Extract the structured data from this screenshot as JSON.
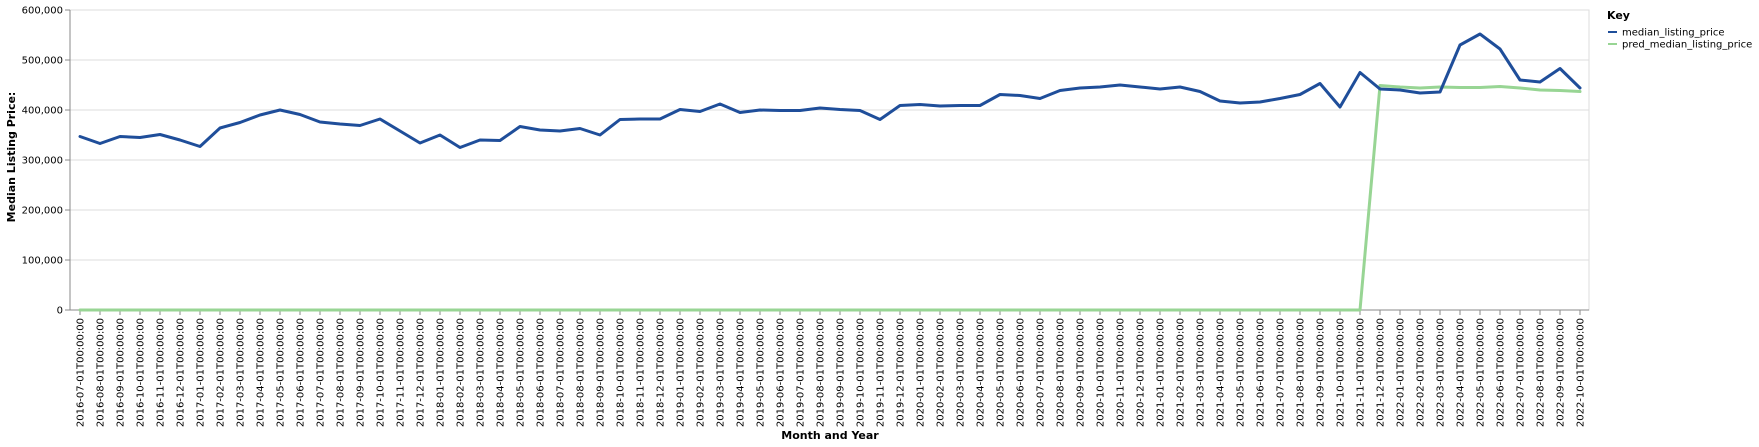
{
  "chart_data": {
    "type": "line",
    "xlabel": "Month and Year",
    "ylabel": "Median Listing Price:",
    "ylim": [
      0,
      600000
    ],
    "y_ticks": [
      0,
      100000,
      200000,
      300000,
      400000,
      500000,
      600000
    ],
    "y_tick_labels": [
      "0",
      "100,000",
      "200,000",
      "300,000",
      "400,000",
      "500,000",
      "600,000"
    ],
    "grid": true,
    "legend": {
      "title": "Key",
      "placement": "top-right"
    },
    "x": [
      "2016-07-01T00:00:00",
      "2016-08-01T00:00:00",
      "2016-09-01T00:00:00",
      "2016-10-01T00:00:00",
      "2016-11-01T00:00:00",
      "2016-12-01T00:00:00",
      "2017-01-01T00:00:00",
      "2017-02-01T00:00:00",
      "2017-03-01T00:00:00",
      "2017-04-01T00:00:00",
      "2017-05-01T00:00:00",
      "2017-06-01T00:00:00",
      "2017-07-01T00:00:00",
      "2017-08-01T00:00:00",
      "2017-09-01T00:00:00",
      "2017-10-01T00:00:00",
      "2017-11-01T00:00:00",
      "2017-12-01T00:00:00",
      "2018-01-01T00:00:00",
      "2018-02-01T00:00:00",
      "2018-03-01T00:00:00",
      "2018-04-01T00:00:00",
      "2018-05-01T00:00:00",
      "2018-06-01T00:00:00",
      "2018-07-01T00:00:00",
      "2018-08-01T00:00:00",
      "2018-09-01T00:00:00",
      "2018-10-01T00:00:00",
      "2018-11-01T00:00:00",
      "2018-12-01T00:00:00",
      "2019-01-01T00:00:00",
      "2019-02-01T00:00:00",
      "2019-03-01T00:00:00",
      "2019-04-01T00:00:00",
      "2019-05-01T00:00:00",
      "2019-06-01T00:00:00",
      "2019-07-01T00:00:00",
      "2019-08-01T00:00:00",
      "2019-09-01T00:00:00",
      "2019-10-01T00:00:00",
      "2019-11-01T00:00:00",
      "2019-12-01T00:00:00",
      "2020-01-01T00:00:00",
      "2020-02-01T00:00:00",
      "2020-03-01T00:00:00",
      "2020-04-01T00:00:00",
      "2020-05-01T00:00:00",
      "2020-06-01T00:00:00",
      "2020-07-01T00:00:00",
      "2020-08-01T00:00:00",
      "2020-09-01T00:00:00",
      "2020-10-01T00:00:00",
      "2020-11-01T00:00:00",
      "2020-12-01T00:00:00",
      "2021-01-01T00:00:00",
      "2021-02-01T00:00:00",
      "2021-03-01T00:00:00",
      "2021-04-01T00:00:00",
      "2021-05-01T00:00:00",
      "2021-06-01T00:00:00",
      "2021-07-01T00:00:00",
      "2021-08-01T00:00:00",
      "2021-09-01T00:00:00",
      "2021-10-01T00:00:00",
      "2021-11-01T00:00:00",
      "2021-12-01T00:00:00",
      "2022-01-01T00:00:00",
      "2022-02-01T00:00:00",
      "2022-03-01T00:00:00",
      "2022-04-01T00:00:00",
      "2022-05-01T00:00:00",
      "2022-06-01T00:00:00",
      "2022-07-01T00:00:00",
      "2022-08-01T00:00:00",
      "2022-09-01T00:00:00",
      "2022-10-01T00:00:00"
    ],
    "series": [
      {
        "name": "median_listing_price",
        "color": "#1f4e9a",
        "values": [
          347000,
          333000,
          347000,
          345000,
          351000,
          340000,
          327000,
          364000,
          375000,
          390000,
          400000,
          391000,
          376000,
          372000,
          369000,
          382000,
          358000,
          334000,
          350000,
          325000,
          340000,
          339000,
          367000,
          360000,
          358000,
          363000,
          350000,
          381000,
          382000,
          382000,
          401000,
          397000,
          412000,
          395000,
          400000,
          399000,
          399000,
          404000,
          401000,
          399000,
          381000,
          409000,
          411000,
          408000,
          409000,
          409000,
          431000,
          429000,
          423000,
          439000,
          444000,
          446000,
          450000,
          446000,
          442000,
          446000,
          437000,
          418000,
          414000,
          416000,
          423000,
          431000,
          453000,
          406000,
          475000,
          442000,
          440000,
          434000,
          436000,
          530000,
          552000,
          522000,
          460000,
          456000,
          483000,
          444000
        ]
      },
      {
        "name": "pred_median_listing_price",
        "color": "#98d594",
        "values": [
          0,
          0,
          0,
          0,
          0,
          0,
          0,
          0,
          0,
          0,
          0,
          0,
          0,
          0,
          0,
          0,
          0,
          0,
          0,
          0,
          0,
          0,
          0,
          0,
          0,
          0,
          0,
          0,
          0,
          0,
          0,
          0,
          0,
          0,
          0,
          0,
          0,
          0,
          0,
          0,
          0,
          0,
          0,
          0,
          0,
          0,
          0,
          0,
          0,
          0,
          0,
          0,
          0,
          0,
          0,
          0,
          0,
          0,
          0,
          0,
          0,
          0,
          0,
          0,
          0,
          449000,
          446000,
          444000,
          446000,
          445000,
          445000,
          447000,
          444000,
          440000,
          439000,
          437000
        ]
      }
    ]
  }
}
